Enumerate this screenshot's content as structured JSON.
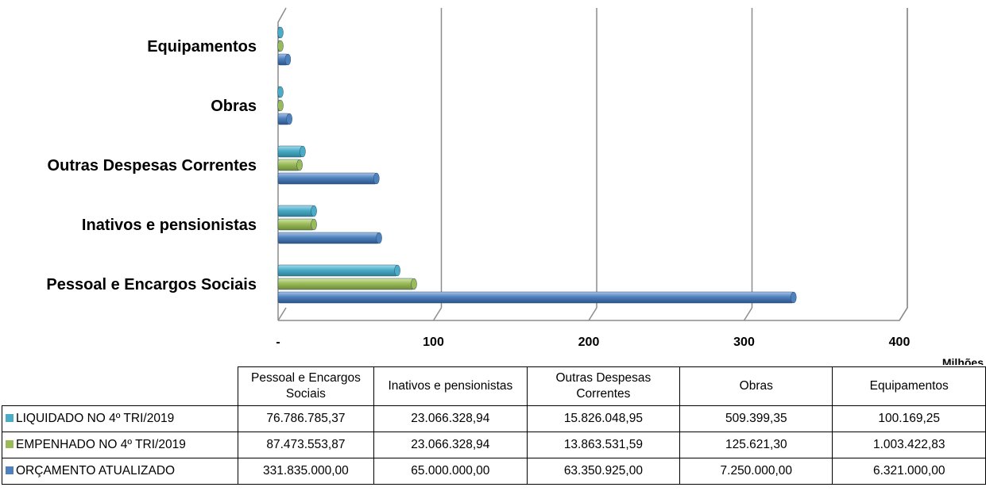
{
  "chart_data": {
    "type": "bar",
    "orientation": "horizontal",
    "categories": [
      "Pessoal e Encargos Sociais",
      "Inativos e pensionistas",
      "Outras Despesas Correntes",
      "Obras",
      "Equipamentos"
    ],
    "series": [
      {
        "name": "LIQUIDADO NO 4º TRI/2019",
        "color": "#4BACC6",
        "values": [
          76786785.37,
          23066328.94,
          15826048.95,
          509399.35,
          100169.25
        ]
      },
      {
        "name": "EMPENHADO NO 4º TRI/2019",
        "color": "#9BBB59",
        "values": [
          87473553.87,
          23066328.94,
          13863531.59,
          125621.3,
          1003422.83
        ]
      },
      {
        "name": "ORÇAMENTO ATUALIZADO",
        "color": "#4F81BD",
        "values": [
          331835000.0,
          65000000.0,
          63350925.0,
          7250000.0,
          6321000.0
        ]
      }
    ],
    "xlim": [
      0,
      400000000
    ],
    "xticks": [
      0,
      100000000,
      200000000,
      300000000,
      400000000
    ],
    "xtick_labels": [
      "-",
      "100",
      "200",
      "300",
      "400"
    ],
    "unit_label": "Milhões",
    "grid": true,
    "legend": "table-below",
    "table": {
      "header": [
        "Pessoal e Encargos Sociais",
        "Inativos e pensionistas",
        "Outras Despesas Correntes",
        "Obras",
        "Equipamentos"
      ],
      "rows": [
        {
          "label": "LIQUIDADO NO 4º TRI/2019",
          "color": "#4BACC6",
          "cells": [
            "76.786.785,37",
            "23.066.328,94",
            "15.826.048,95",
            "509.399,35",
            "100.169,25"
          ]
        },
        {
          "label": "EMPENHADO NO 4º TRI/2019",
          "color": "#9BBB59",
          "cells": [
            "87.473.553,87",
            "23.066.328,94",
            "13.863.531,59",
            "125.621,30",
            "1.003.422,83"
          ]
        },
        {
          "label": "ORÇAMENTO ATUALIZADO",
          "color": "#4F81BD",
          "cells": [
            "331.835.000,00",
            "65.000.000,00",
            "63.350.925,00",
            "7.250.000,00",
            "6.321.000,00"
          ]
        }
      ]
    }
  }
}
